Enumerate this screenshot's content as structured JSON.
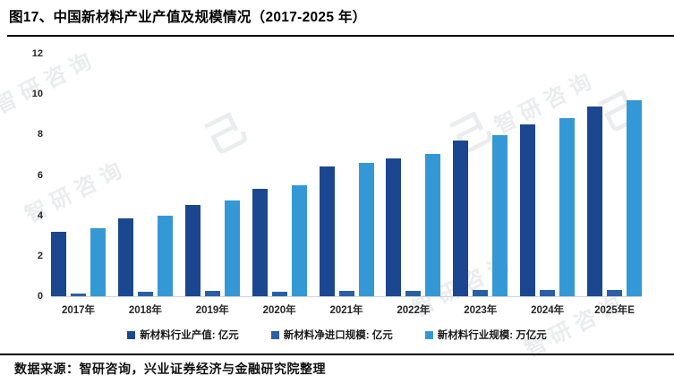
{
  "title": "图17、中国新材料产业产值及规模情况（2017-2025 年）",
  "source": "数据来源：智研咨询，兴业证券经济与金融研究院整理",
  "watermark_text": "智研咨询",
  "colors": {
    "series1": "#1b4791",
    "series2": "#2a5fa8",
    "series3": "#3598d6",
    "axis_line": "#ccd4de"
  },
  "chart_data": {
    "type": "bar",
    "categories": [
      "2017年",
      "2018年",
      "2019年",
      "2020年",
      "2021年",
      "2022年",
      "2023年",
      "2024年",
      "2025年E"
    ],
    "series": [
      {
        "name": "新材料行业产值: 亿元",
        "color": "#1b4791",
        "values": [
          3.2,
          3.85,
          4.5,
          5.3,
          6.4,
          6.8,
          7.7,
          8.5,
          9.4
        ]
      },
      {
        "name": "新材料净进口规模: 亿元",
        "color": "#2a5fa8",
        "values": [
          0.15,
          0.2,
          0.25,
          0.2,
          0.25,
          0.25,
          0.3,
          0.3,
          0.3
        ]
      },
      {
        "name": "新材料行业规模: 万亿元",
        "color": "#3598d6",
        "values": [
          3.35,
          4.0,
          4.75,
          5.5,
          6.6,
          7.05,
          7.95,
          8.8,
          9.7
        ]
      }
    ],
    "ylim": [
      0,
      12
    ],
    "yticks": [
      0,
      2,
      4,
      6,
      8,
      10,
      12
    ],
    "grid": false,
    "legend_position": "bottom"
  }
}
